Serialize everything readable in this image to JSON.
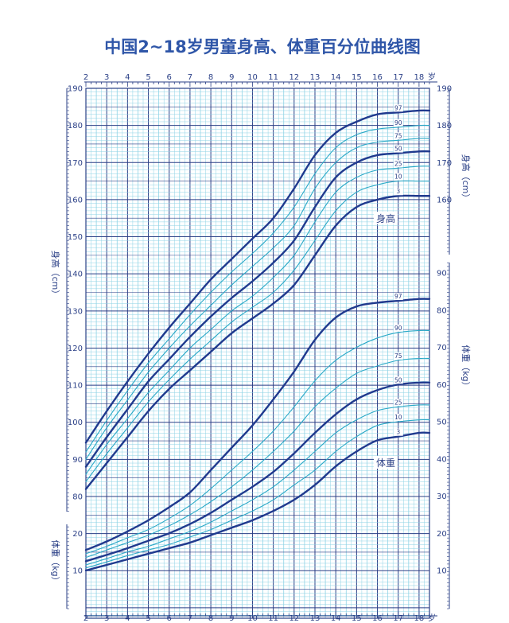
{
  "chart_data": {
    "type": "line",
    "title": "中国2~18岁男童身高、体重百分位曲线图",
    "age_unit": "岁",
    "x_ticks": [
      2,
      3,
      4,
      5,
      6,
      7,
      8,
      9,
      10,
      11,
      12,
      13,
      14,
      15,
      16,
      17,
      18
    ],
    "xlim": [
      2,
      18.5
    ],
    "height_axis": {
      "label": "身高（cm）",
      "ticks": [
        80,
        90,
        100,
        110,
        120,
        130,
        140,
        150,
        160,
        170,
        180,
        190
      ],
      "right_ticks": [
        160,
        170,
        180,
        190
      ]
    },
    "weight_axis": {
      "label": "体重（kg）",
      "ticks": [
        10,
        20
      ],
      "right_ticks": [
        10,
        20,
        30,
        40,
        50,
        60,
        70,
        80,
        90
      ]
    },
    "height_curve_label": "身高",
    "weight_curve_label": "体重",
    "x": [
      2,
      3,
      4,
      5,
      6,
      7,
      8,
      9,
      10,
      11,
      12,
      13,
      14,
      15,
      16,
      17,
      18
    ],
    "height_series": [
      {
        "name": "3",
        "bold": true,
        "values": [
          82,
          89,
          96,
          103,
          109,
          114,
          119,
          124,
          128,
          132,
          137,
          145,
          153,
          158,
          160,
          161,
          161
        ]
      },
      {
        "name": "10",
        "bold": false,
        "values": [
          84,
          91.5,
          98.5,
          105.5,
          111.5,
          117,
          122,
          127,
          131,
          135,
          141,
          149,
          157,
          162,
          164,
          165,
          165
        ]
      },
      {
        "name": "25",
        "bold": false,
        "values": [
          86,
          94,
          101,
          108,
          114,
          120,
          125,
          130,
          134,
          139,
          145,
          154,
          162,
          166,
          168,
          168.5,
          169
        ]
      },
      {
        "name": "50",
        "bold": true,
        "values": [
          88,
          96,
          103.5,
          111,
          117,
          123,
          128.5,
          133.5,
          138,
          143,
          149,
          158,
          166,
          170,
          172,
          172.5,
          173
        ]
      },
      {
        "name": "75",
        "bold": false,
        "values": [
          90,
          98.5,
          106,
          113.5,
          120,
          126,
          131.5,
          137,
          142,
          147,
          153,
          163,
          170,
          174,
          175.5,
          176,
          176.5
        ]
      },
      {
        "name": "90",
        "bold": false,
        "values": [
          92,
          100.5,
          108.5,
          116,
          122.5,
          129,
          135,
          140.5,
          145.5,
          151,
          158,
          167,
          174,
          177.5,
          179,
          179.5,
          180
        ]
      },
      {
        "name": "97",
        "bold": true,
        "values": [
          94.5,
          103,
          111,
          118.5,
          125.5,
          132,
          138.5,
          144,
          149.5,
          155,
          163,
          172,
          178,
          181,
          183,
          183.5,
          184
        ]
      }
    ],
    "weight_series": [
      {
        "name": "3",
        "bold": true,
        "values": [
          10,
          11.5,
          13,
          14.5,
          16,
          17.5,
          19.5,
          21.5,
          23.5,
          26,
          29,
          33,
          38,
          42,
          45,
          46,
          47
        ]
      },
      {
        "name": "10",
        "bold": false,
        "values": [
          10.7,
          12.3,
          14,
          15.5,
          17,
          19,
          21,
          23.5,
          26,
          29,
          33,
          37,
          42,
          46,
          49,
          50,
          50.5
        ]
      },
      {
        "name": "25",
        "bold": false,
        "values": [
          11.5,
          13.2,
          15,
          16.5,
          18.5,
          20.5,
          23,
          26,
          29,
          32.5,
          37,
          42,
          47,
          50.5,
          53,
          54,
          54.5
        ]
      },
      {
        "name": "50",
        "bold": true,
        "values": [
          12.5,
          14.2,
          16,
          18,
          20,
          22.5,
          25.5,
          29,
          32.5,
          36.5,
          41.5,
          47,
          52,
          56,
          58.5,
          60,
          60.5
        ]
      },
      {
        "name": "75",
        "bold": false,
        "values": [
          13.5,
          15.5,
          17.5,
          19.5,
          22,
          25,
          28.5,
          32.5,
          37,
          42,
          47.5,
          54,
          59,
          63,
          65,
          66.5,
          67
        ]
      },
      {
        "name": "90",
        "bold": false,
        "values": [
          14.5,
          16.5,
          18.8,
          21,
          24,
          27.5,
          32,
          37,
          42,
          47.5,
          54,
          61,
          66.5,
          70,
          72.5,
          74,
          74.5
        ]
      },
      {
        "name": "97",
        "bold": true,
        "values": [
          15.5,
          17.8,
          20.5,
          23.5,
          27,
          31,
          37,
          43,
          49,
          56,
          63.5,
          72,
          78,
          81,
          82,
          82.5,
          83
        ]
      }
    ],
    "grid": true,
    "colors": {
      "title": "#2f56a8",
      "grid_major": "#2a3f86",
      "grid_minor": "#8fd3e6",
      "bold_curve": "#203a8e",
      "thin_curve": "#2aa9c7",
      "axis_text": "#2a3f86"
    }
  }
}
